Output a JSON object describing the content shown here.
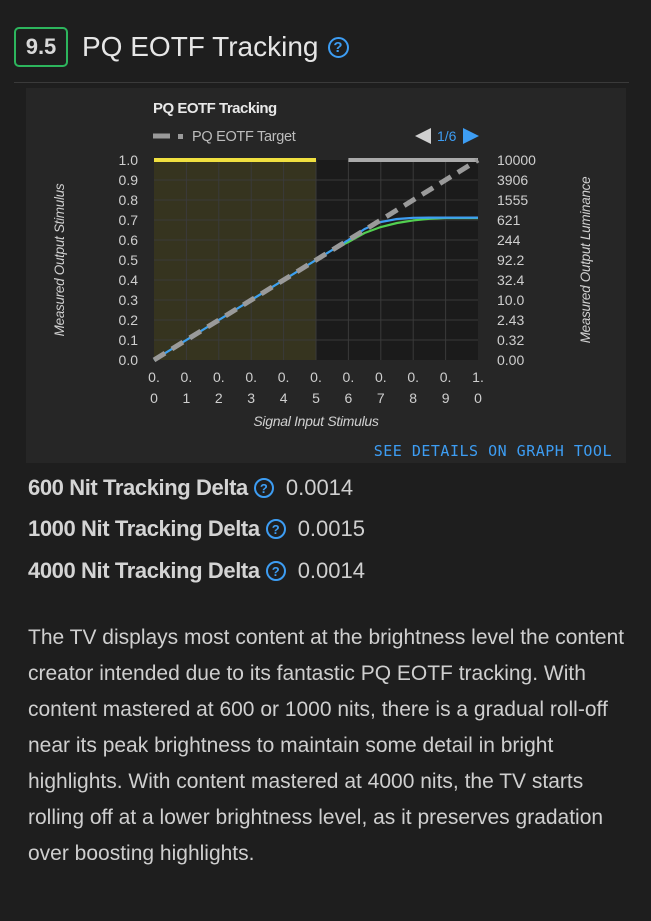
{
  "header": {
    "score": "9.5",
    "title": "PQ EOTF Tracking",
    "help_glyph": "?"
  },
  "chart_data": {
    "type": "line",
    "title": "PQ EOTF Tracking",
    "legend": {
      "label": "PQ EOTF Target",
      "pager": "1/6"
    },
    "xlabel": "Signal Input Stimulus",
    "ylabel_left": "Measured Output Stimulus",
    "ylabel_right": "Measured Output Luminance",
    "xlim": [
      0,
      1
    ],
    "ylim": [
      0,
      1
    ],
    "x_ticks": [
      "0.0",
      "0.1",
      "0.2",
      "0.3",
      "0.4",
      "0.5",
      "0.6",
      "0.7",
      "0.8",
      "0.9",
      "1.0"
    ],
    "y_ticks_left": [
      "0.0",
      "0.1",
      "0.2",
      "0.3",
      "0.4",
      "0.5",
      "0.6",
      "0.7",
      "0.8",
      "0.9",
      "1.0"
    ],
    "y_ticks_right": [
      "0.00",
      "0.32",
      "2.43",
      "10.0",
      "32.4",
      "92.2",
      "244",
      "621",
      "1555",
      "3906",
      "10000"
    ],
    "highlight_region": {
      "x": [
        0,
        0.5
      ],
      "color": "#f0e040"
    },
    "top_bar": {
      "x": [
        0.6,
        1.0
      ],
      "color": "#aaaaaa"
    },
    "series": [
      {
        "role": "target",
        "color": "#9a9a9a",
        "dashed": true,
        "points": [
          [
            0,
            0
          ],
          [
            1,
            1
          ]
        ]
      },
      {
        "role": "measured",
        "color": "#52d050",
        "points": [
          [
            0,
            0
          ],
          [
            0.1,
            0.1
          ],
          [
            0.2,
            0.2
          ],
          [
            0.3,
            0.3
          ],
          [
            0.4,
            0.4
          ],
          [
            0.5,
            0.5
          ],
          [
            0.55,
            0.55
          ],
          [
            0.6,
            0.59
          ],
          [
            0.65,
            0.635
          ],
          [
            0.7,
            0.665
          ],
          [
            0.75,
            0.685
          ],
          [
            0.8,
            0.698
          ],
          [
            0.85,
            0.706
          ],
          [
            0.9,
            0.71
          ],
          [
            0.95,
            0.71
          ],
          [
            1,
            0.71
          ]
        ]
      },
      {
        "role": "measured",
        "color": "#3d9df3",
        "points": [
          [
            0,
            0
          ],
          [
            0.1,
            0.1
          ],
          [
            0.2,
            0.2
          ],
          [
            0.3,
            0.3
          ],
          [
            0.4,
            0.4
          ],
          [
            0.5,
            0.5
          ],
          [
            0.55,
            0.55
          ],
          [
            0.6,
            0.6
          ],
          [
            0.65,
            0.655
          ],
          [
            0.7,
            0.69
          ],
          [
            0.75,
            0.705
          ],
          [
            0.8,
            0.711
          ],
          [
            0.85,
            0.712
          ],
          [
            0.9,
            0.712
          ],
          [
            0.95,
            0.712
          ],
          [
            1,
            0.712
          ]
        ]
      }
    ]
  },
  "graph_link": "SEE DETAILS ON GRAPH TOOL",
  "metrics": [
    {
      "label": "600 Nit Tracking Delta",
      "value": "0.0014"
    },
    {
      "label": "1000 Nit Tracking Delta",
      "value": "0.0015"
    },
    {
      "label": "4000 Nit Tracking Delta",
      "value": "0.0014"
    }
  ],
  "description": "The TV displays most content at the brightness level the content creator intended due to its fantastic PQ EOTF tracking. With content mastered at 600 or 1000 nits, there is a gradual roll-off near its peak brightness to maintain some detail in bright highlights. With content mastered at 4000 nits, the TV starts rolling off at a lower brightness level, as it preserves gradation over boosting highlights."
}
